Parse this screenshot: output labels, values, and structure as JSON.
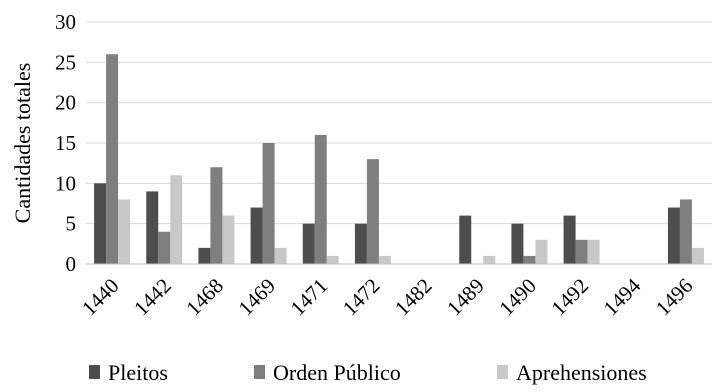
{
  "chart_data": {
    "type": "bar",
    "title": "",
    "xlabel": "",
    "ylabel": "Cantidades totales",
    "ylim": [
      0,
      30
    ],
    "yticks": [
      0,
      5,
      10,
      15,
      20,
      25,
      30
    ],
    "grid": true,
    "legend_position": "bottom",
    "categories": [
      "1440",
      "1442",
      "1468",
      "1469",
      "1471",
      "1472",
      "1482",
      "1489",
      "1490",
      "1492",
      "1494",
      "1496"
    ],
    "series": [
      {
        "name": "Pleitos",
        "color": "#4d4d4d",
        "values": [
          10,
          9,
          2,
          7,
          5,
          5,
          0,
          6,
          5,
          6,
          0,
          7
        ]
      },
      {
        "name": "Orden Público",
        "color": "#7f7f7f",
        "values": [
          26,
          4,
          12,
          15,
          16,
          13,
          0,
          0,
          1,
          3,
          0,
          8
        ]
      },
      {
        "name": "Aprehensiones",
        "color": "#c8c8c8",
        "values": [
          8,
          11,
          6,
          2,
          1,
          1,
          0,
          1,
          3,
          3,
          0,
          2
        ]
      }
    ]
  }
}
